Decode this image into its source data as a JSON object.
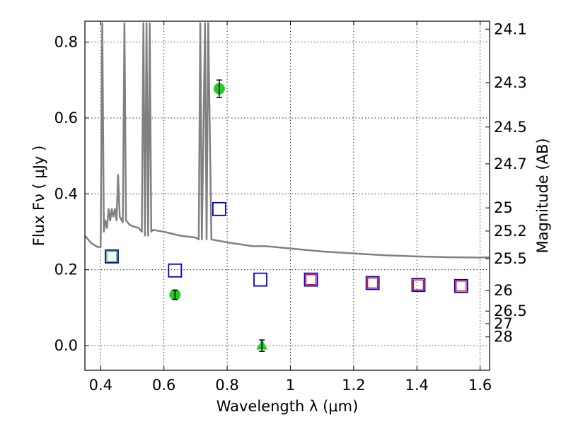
{
  "chart_data": {
    "type": "scatter",
    "xlabel": "Wavelength  λ (μm)",
    "ylabel": "Flux  Fν  ( μJy )",
    "y2label": "Magnitude (AB)",
    "xlim": [
      0.35,
      1.63
    ],
    "ylim": [
      -0.065,
      0.855
    ],
    "grid": true,
    "x_ticks": [
      0.4,
      0.6,
      0.8,
      1.0,
      1.2,
      1.4,
      1.6
    ],
    "x_tick_labels": [
      "0.4",
      "0.6",
      "0.8",
      "1",
      "1.2",
      "1.4",
      "1.6"
    ],
    "y_ticks": [
      0.0,
      0.2,
      0.4,
      0.6,
      0.8
    ],
    "y_tick_labels": [
      "0.0",
      "0.2",
      "0.4",
      "0.6",
      "0.8"
    ],
    "mag_ticks": [
      {
        "flux": 0.834,
        "label": "24.1"
      },
      {
        "flux": 0.693,
        "label": "24.3"
      },
      {
        "flux": 0.576,
        "label": "24.5"
      },
      {
        "flux": 0.479,
        "label": "24.7"
      },
      {
        "flux": 0.363,
        "label": "25"
      },
      {
        "flux": 0.302,
        "label": "25.2"
      },
      {
        "flux": 0.229,
        "label": "25.5"
      },
      {
        "flux": 0.145,
        "label": "26"
      },
      {
        "flux": 0.091,
        "label": "26.5"
      },
      {
        "flux": 0.058,
        "label": "27"
      },
      {
        "flux": 0.023,
        "label": "28"
      }
    ],
    "series": [
      {
        "kind": "line",
        "color": "#808080",
        "x": [
          0.35,
          0.37,
          0.39,
          0.4,
          0.405,
          0.41,
          0.415,
          0.42,
          0.425,
          0.43,
          0.435,
          0.44,
          0.445,
          0.45,
          0.455,
          0.46,
          0.47,
          0.475,
          0.48,
          0.485,
          0.49,
          0.5,
          0.52,
          0.53,
          0.535,
          0.54,
          0.545,
          0.55,
          0.555,
          0.56,
          0.565,
          0.6,
          0.65,
          0.7,
          0.71,
          0.715,
          0.72,
          0.73,
          0.735,
          0.74,
          0.75,
          0.8,
          0.85,
          0.88,
          0.9,
          0.92,
          0.95,
          1.0,
          1.1,
          1.2,
          1.3,
          1.4,
          1.5,
          1.6,
          1.63
        ],
        "y": [
          0.29,
          0.27,
          0.26,
          0.26,
          0.85,
          0.3,
          0.33,
          0.31,
          0.36,
          0.33,
          0.36,
          0.34,
          0.36,
          0.33,
          0.45,
          0.34,
          0.325,
          0.85,
          0.33,
          0.325,
          0.32,
          0.315,
          0.31,
          0.3,
          0.85,
          0.29,
          0.85,
          0.29,
          0.85,
          0.3,
          0.305,
          0.3,
          0.29,
          0.285,
          0.28,
          0.85,
          0.28,
          0.85,
          0.28,
          0.85,
          0.28,
          0.272,
          0.266,
          0.262,
          0.262,
          0.262,
          0.26,
          0.256,
          0.248,
          0.243,
          0.238,
          0.235,
          0.233,
          0.232,
          0.233
        ]
      },
      {
        "kind": "hollow-square",
        "color": "#0000cc",
        "x": [
          0.435,
          0.635,
          0.775,
          0.905,
          1.065,
          1.26,
          1.405,
          1.54
        ],
        "y": [
          0.235,
          0.198,
          0.36,
          0.174,
          0.174,
          0.165,
          0.16,
          0.157
        ]
      },
      {
        "kind": "hollow-square",
        "color": "#ff0000",
        "x": [
          1.065,
          1.26,
          1.405,
          1.54
        ],
        "y": [
          0.174,
          0.165,
          0.16,
          0.157
        ]
      },
      {
        "kind": "hollow-square",
        "color": "#00cc00",
        "x": [
          0.435
        ],
        "y": [
          0.235
        ]
      },
      {
        "kind": "circle",
        "color": "#22cc22",
        "x": [
          0.635,
          0.775
        ],
        "y": [
          0.134,
          0.677
        ],
        "yerr": [
          0.012,
          0.023
        ]
      },
      {
        "kind": "triangle",
        "color": "#22cc22",
        "x": [
          0.91
        ],
        "y": [
          0.0
        ],
        "yerr": [
          0.015
        ]
      }
    ]
  }
}
